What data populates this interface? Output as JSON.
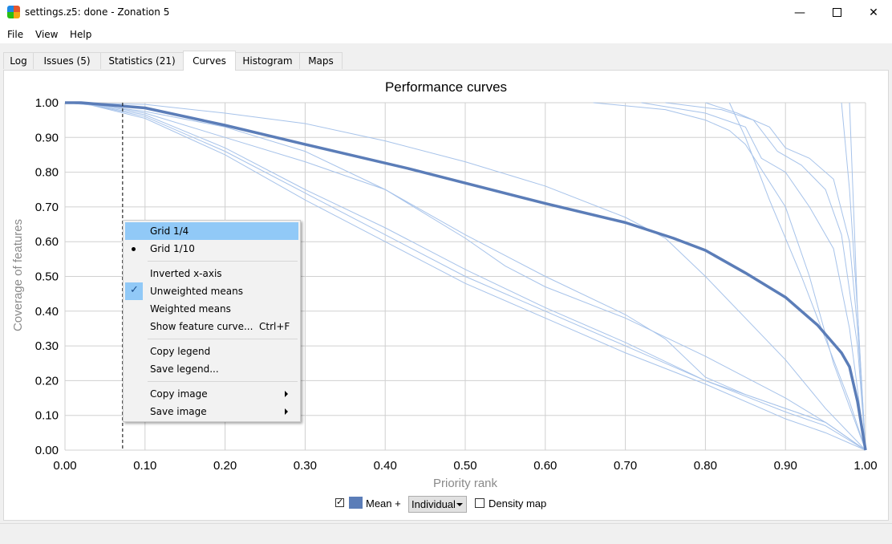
{
  "window": {
    "title": "settings.z5: done - Zonation 5"
  },
  "menubar": {
    "file": "File",
    "view": "View",
    "help": "Help"
  },
  "tabs": [
    {
      "label": "Log"
    },
    {
      "label": "Issues (5)"
    },
    {
      "label": "Statistics (21)"
    },
    {
      "label": "Curves"
    },
    {
      "label": "Histogram"
    },
    {
      "label": "Maps"
    }
  ],
  "active_tab": "Curves",
  "legend": {
    "mean_label": "Mean +",
    "mode_select": "Individual",
    "density_label": "Density map",
    "mean_checked": true,
    "density_checked": false
  },
  "context_menu": {
    "items": [
      {
        "label": "Grid 1/4",
        "highlighted": true
      },
      {
        "label": "Grid 1/10",
        "radio_selected": true
      },
      {
        "label": "Inverted x-axis"
      },
      {
        "label": "Unweighted means",
        "checked": true
      },
      {
        "label": "Weighted means"
      },
      {
        "label": "Show feature curve...",
        "shortcut": "Ctrl+F"
      },
      {
        "label": "Copy legend"
      },
      {
        "label": "Save legend..."
      },
      {
        "label": "Copy image",
        "submenu": true
      },
      {
        "label": "Save image",
        "submenu": true
      }
    ]
  },
  "colors": {
    "mean_line": "#5b7db8",
    "feature_lines": "#a7c3ea",
    "menu_highlight": "#91c9f7"
  },
  "chart_data": {
    "type": "line",
    "title": "Performance curves",
    "xlabel": "Priority rank",
    "ylabel": "Coverage of features",
    "xlim": [
      0,
      1
    ],
    "ylim": [
      0,
      1
    ],
    "xticks": [
      "0.00",
      "0.10",
      "0.20",
      "0.30",
      "0.40",
      "0.50",
      "0.60",
      "0.70",
      "0.80",
      "0.90",
      "1.00"
    ],
    "yticks": [
      "0.00",
      "0.10",
      "0.20",
      "0.30",
      "0.40",
      "0.50",
      "0.60",
      "0.70",
      "0.80",
      "0.90",
      "1.00"
    ],
    "grid": true,
    "marker_line_x": 0.072,
    "series": [
      {
        "name": "Mean",
        "x": [
          0,
          0.02,
          0.1,
          0.2,
          0.3,
          0.43,
          0.6,
          0.7,
          0.76,
          0.8,
          0.85,
          0.9,
          0.94,
          0.97,
          0.98,
          0.99,
          1.0
        ],
        "y": [
          1,
          1,
          0.985,
          0.935,
          0.88,
          0.81,
          0.71,
          0.655,
          0.61,
          0.575,
          0.51,
          0.44,
          0.36,
          0.28,
          0.24,
          0.14,
          0
        ]
      },
      {
        "x": [
          0,
          0.02,
          0.1,
          0.2,
          0.3,
          0.4,
          0.5,
          0.6,
          0.7,
          0.8,
          0.9,
          0.95,
          1.0
        ],
        "y": [
          1,
          1,
          0.96,
          0.86,
          0.74,
          0.62,
          0.5,
          0.4,
          0.3,
          0.2,
          0.11,
          0.07,
          0
        ]
      },
      {
        "x": [
          0,
          0.02,
          0.1,
          0.2,
          0.3,
          0.4,
          0.5,
          0.6,
          0.7,
          0.8,
          0.9,
          0.95,
          1.0
        ],
        "y": [
          1,
          1,
          0.955,
          0.85,
          0.72,
          0.6,
          0.48,
          0.38,
          0.28,
          0.19,
          0.09,
          0.05,
          0
        ]
      },
      {
        "x": [
          0,
          0.02,
          0.1,
          0.2,
          0.3,
          0.4,
          0.5,
          0.6,
          0.7,
          0.8,
          0.9,
          0.95,
          1.0
        ],
        "y": [
          1,
          1,
          0.965,
          0.87,
          0.75,
          0.64,
          0.52,
          0.41,
          0.31,
          0.2,
          0.12,
          0.08,
          0
        ]
      },
      {
        "x": [
          0,
          0.05,
          0.1,
          0.2,
          0.3,
          0.4,
          0.5,
          0.6,
          0.7,
          0.75,
          0.8,
          0.85,
          0.9,
          0.95,
          1.0
        ],
        "y": [
          1,
          0.99,
          0.97,
          0.9,
          0.83,
          0.75,
          0.62,
          0.5,
          0.39,
          0.32,
          0.21,
          0.16,
          0.12,
          0.08,
          0
        ]
      },
      {
        "x": [
          0,
          0.05,
          0.1,
          0.2,
          0.3,
          0.4,
          0.5,
          0.55,
          0.6,
          0.7,
          0.8,
          0.9,
          0.95,
          1.0
        ],
        "y": [
          1,
          0.99,
          0.975,
          0.93,
          0.86,
          0.75,
          0.61,
          0.53,
          0.47,
          0.38,
          0.27,
          0.15,
          0.08,
          0
        ]
      },
      {
        "x": [
          0,
          0.1,
          0.2,
          0.3,
          0.4,
          0.5,
          0.6,
          0.7,
          0.75,
          0.8,
          0.85,
          0.9,
          0.95,
          1.0
        ],
        "y": [
          1,
          0.995,
          0.97,
          0.94,
          0.89,
          0.83,
          0.76,
          0.67,
          0.61,
          0.5,
          0.38,
          0.26,
          0.12,
          0
        ]
      },
      {
        "x": [
          0.66,
          0.75,
          0.8,
          0.83,
          0.85,
          0.9,
          0.93,
          0.96,
          1.0
        ],
        "y": [
          1,
          0.98,
          0.95,
          0.92,
          0.88,
          0.7,
          0.5,
          0.25,
          0
        ]
      },
      {
        "x": [
          0.72,
          0.8,
          0.85,
          0.87,
          0.9,
          0.93,
          0.96,
          0.98,
          1.0
        ],
        "y": [
          1,
          0.97,
          0.93,
          0.84,
          0.8,
          0.7,
          0.58,
          0.35,
          0
        ]
      },
      {
        "x": [
          0.75,
          0.82,
          0.86,
          0.89,
          0.92,
          0.95,
          0.97,
          0.99,
          1.0
        ],
        "y": [
          1,
          0.98,
          0.95,
          0.86,
          0.82,
          0.75,
          0.62,
          0.3,
          0
        ]
      },
      {
        "x": [
          0.8,
          0.84,
          0.88,
          0.9,
          0.93,
          0.96,
          0.98,
          0.99,
          1.0
        ],
        "y": [
          1,
          0.97,
          0.93,
          0.87,
          0.84,
          0.78,
          0.6,
          0.35,
          0
        ]
      },
      {
        "x": [
          0.83,
          0.85,
          0.88,
          0.92,
          0.95,
          0.98,
          1.0
        ],
        "y": [
          1,
          0.9,
          0.72,
          0.5,
          0.32,
          0.14,
          0
        ]
      },
      {
        "x": [
          0.97,
          0.98,
          0.99,
          1.0
        ],
        "y": [
          1,
          0.75,
          0.4,
          0
        ]
      },
      {
        "x": [
          0.98,
          0.985,
          0.99,
          1.0
        ],
        "y": [
          1,
          0.7,
          0.4,
          0
        ]
      }
    ]
  }
}
